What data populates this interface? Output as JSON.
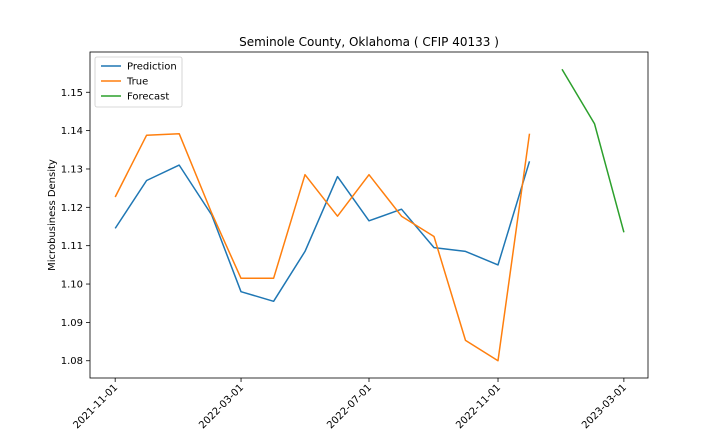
{
  "chart_data": {
    "type": "line",
    "title": "Seminole County, Oklahoma ( CFIP 40133 )",
    "xlabel": "",
    "ylabel": "Microbusiness Density",
    "ylim": [
      1.0755,
      1.1605
    ],
    "xlim": [
      "2021-10-08",
      "2023-03-24"
    ],
    "x_ticks": [
      "2021-11-01",
      "2022-03-01",
      "2022-07-01",
      "2022-11-01",
      "2023-03-01"
    ],
    "y_ticks": [
      "1.08",
      "1.09",
      "1.10",
      "1.11",
      "1.12",
      "1.13",
      "1.14",
      "1.15"
    ],
    "y_tick_values": [
      1.08,
      1.09,
      1.1,
      1.11,
      1.12,
      1.13,
      1.14,
      1.15
    ],
    "legend_position": "upper-left",
    "grid": false,
    "series": [
      {
        "name": "Prediction",
        "color": "#1f77b4",
        "x": [
          "2021-11-01",
          "2021-12-01",
          "2022-01-01",
          "2022-02-01",
          "2022-03-01",
          "2022-04-01",
          "2022-05-01",
          "2022-06-01",
          "2022-07-01",
          "2022-08-01",
          "2022-09-01",
          "2022-10-01",
          "2022-11-01",
          "2022-12-01"
        ],
        "y": [
          1.1145,
          1.127,
          1.131,
          1.118,
          1.098,
          1.0955,
          1.1085,
          1.128,
          1.1165,
          1.1195,
          1.1095,
          1.1085,
          1.105,
          1.132
        ]
      },
      {
        "name": "True",
        "color": "#ff7f0e",
        "x": [
          "2021-11-01",
          "2021-12-01",
          "2022-01-01",
          "2022-02-01",
          "2022-03-01",
          "2022-04-01",
          "2022-05-01",
          "2022-06-01",
          "2022-07-01",
          "2022-08-01",
          "2022-09-01",
          "2022-10-01",
          "2022-11-01",
          "2022-12-01"
        ],
        "y": [
          1.1227,
          1.1388,
          1.1392,
          1.1185,
          1.1015,
          1.1015,
          1.1285,
          1.1177,
          1.1285,
          1.1177,
          1.1124,
          1.0853,
          1.08,
          1.1392
        ]
      },
      {
        "name": "Forecast",
        "color": "#2ca02c",
        "x": [
          "2023-01-01",
          "2023-02-01",
          "2023-03-01"
        ],
        "y": [
          1.156,
          1.1418,
          1.1135
        ]
      }
    ]
  }
}
